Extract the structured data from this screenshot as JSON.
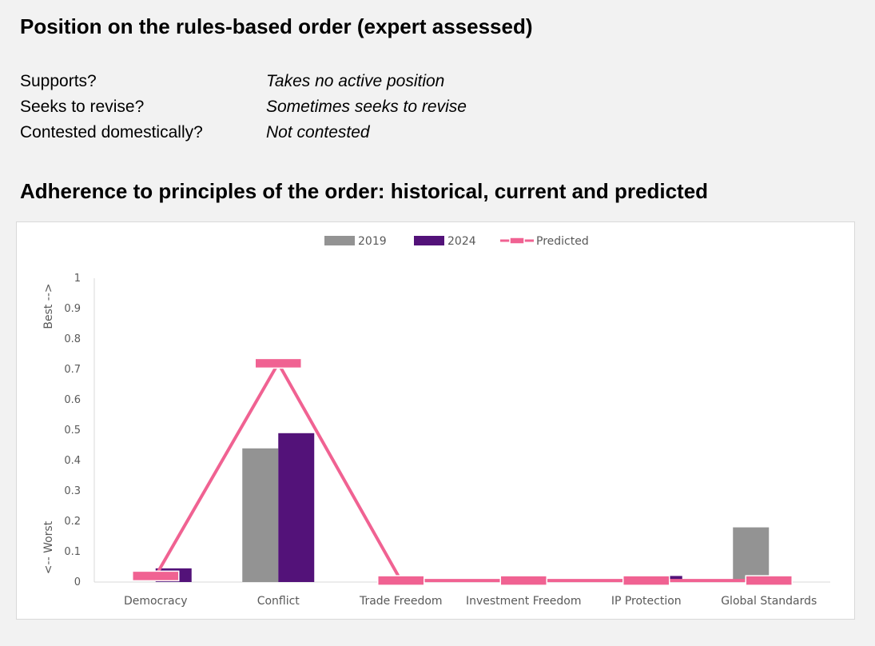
{
  "heading_position": "Position on the rules-based order (expert assessed)",
  "position_rows": [
    {
      "label": "Supports?",
      "value": "Takes no active position"
    },
    {
      "label": "Seeks to revise?",
      "value": "Sometimes seeks to revise"
    },
    {
      "label": "Contested domestically?",
      "value": "Not contested"
    }
  ],
  "heading_adherence": "Adherence to principles of the order: historical, current and predicted",
  "chart_data": {
    "type": "bar",
    "categories": [
      "Democracy",
      "Conflict",
      "Trade Freedom",
      "Investment Freedom",
      "IP Protection",
      "Global Standards"
    ],
    "series": [
      {
        "name": "2019",
        "values": [
          0.0,
          0.44,
          0.0,
          0.0,
          0.0,
          0.18
        ],
        "color": "#939393"
      },
      {
        "name": "2024",
        "values": [
          0.045,
          0.49,
          0.0,
          0.0,
          0.02,
          0.0
        ],
        "color": "#531279"
      },
      {
        "name": "Predicted",
        "values": [
          0.02,
          0.72,
          0.005,
          0.005,
          0.005,
          0.005
        ],
        "color": "#f06292",
        "style": "line-with-markers"
      }
    ],
    "ylim": [
      0,
      1
    ],
    "yticks": [
      "0",
      "0.1",
      "0.2",
      "0.3",
      "0.4",
      "0.5",
      "0.6",
      "0.7",
      "0.8",
      "0.9",
      "1"
    ],
    "ylabel_top": "Best -->",
    "ylabel_bottom": "<-- Worst",
    "legend_position": "top-center",
    "grid": false
  }
}
